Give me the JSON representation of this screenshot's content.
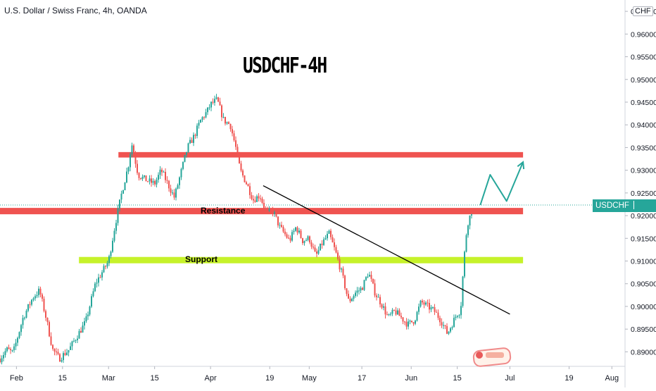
{
  "chart_header": {
    "symbol_line": "U.S. Dollar / Swiss Franc, 4h, OANDA",
    "currency": "CHF"
  },
  "chart_data": {
    "type": "candlestick",
    "title": "USDCHF-4H",
    "ylim": [
      0.8868,
      0.9675
    ],
    "x_range": [
      "2021-01-27",
      "2021-08-05"
    ],
    "x_ticks": [
      {
        "date": "2021-02-01",
        "label": "Feb"
      },
      {
        "date": "2021-02-15",
        "label": "15"
      },
      {
        "date": "2021-03-01",
        "label": "Mar"
      },
      {
        "date": "2021-03-15",
        "label": "15"
      },
      {
        "date": "2021-04-01",
        "label": "Apr"
      },
      {
        "date": "2021-04-19",
        "label": "19"
      },
      {
        "date": "2021-05-01",
        "label": "May"
      },
      {
        "date": "2021-05-17",
        "label": "17"
      },
      {
        "date": "2021-06-01",
        "label": "Jun"
      },
      {
        "date": "2021-06-15",
        "label": "15"
      },
      {
        "date": "2021-07-01",
        "label": "Jul"
      },
      {
        "date": "2021-07-19",
        "label": "19"
      },
      {
        "date": "2021-08-01",
        "label": "Aug"
      }
    ],
    "y_ticks": [
      0.965,
      0.96,
      0.955,
      0.95,
      0.945,
      0.94,
      0.935,
      0.93,
      0.925,
      0.92,
      0.915,
      0.91,
      0.905,
      0.9,
      0.895,
      0.89
    ],
    "last_price": {
      "label": "USDCHF",
      "value": "0.92233",
      "price": 0.92233
    },
    "price_path": [
      [
        "2021-01-27",
        0.8885
      ],
      [
        "2021-01-29",
        0.8905
      ],
      [
        "2021-01-31",
        0.8898
      ],
      [
        "2021-02-03",
        0.8975
      ],
      [
        "2021-02-06",
        0.902
      ],
      [
        "2021-02-08",
        0.9035
      ],
      [
        "2021-02-10",
        0.8975
      ],
      [
        "2021-02-12",
        0.8905
      ],
      [
        "2021-02-14",
        0.8885
      ],
      [
        "2021-02-17",
        0.8905
      ],
      [
        "2021-02-19",
        0.893
      ],
      [
        "2021-02-22",
        0.8965
      ],
      [
        "2021-02-25",
        0.905
      ],
      [
        "2021-02-27",
        0.9075
      ],
      [
        "2021-03-01",
        0.91
      ],
      [
        "2021-03-03",
        0.918
      ],
      [
        "2021-03-05",
        0.925
      ],
      [
        "2021-03-07",
        0.931
      ],
      [
        "2021-03-08",
        0.936
      ],
      [
        "2021-03-10",
        0.929
      ],
      [
        "2021-03-12",
        0.928
      ],
      [
        "2021-03-15",
        0.927
      ],
      [
        "2021-03-17",
        0.93
      ],
      [
        "2021-03-19",
        0.927
      ],
      [
        "2021-03-21",
        0.924
      ],
      [
        "2021-03-23",
        0.9295
      ],
      [
        "2021-03-25",
        0.935
      ],
      [
        "2021-03-27",
        0.9375
      ],
      [
        "2021-03-29",
        0.941
      ],
      [
        "2021-03-31",
        0.943
      ],
      [
        "2021-04-01",
        0.9445
      ],
      [
        "2021-04-03",
        0.9455
      ],
      [
        "2021-04-05",
        0.941
      ],
      [
        "2021-04-07",
        0.94
      ],
      [
        "2021-04-09",
        0.934
      ],
      [
        "2021-04-10",
        0.93
      ],
      [
        "2021-04-12",
        0.927
      ],
      [
        "2021-04-14",
        0.9235
      ],
      [
        "2021-04-16",
        0.9245
      ],
      [
        "2021-04-18",
        0.9205
      ],
      [
        "2021-04-20",
        0.921
      ],
      [
        "2021-04-22",
        0.9175
      ],
      [
        "2021-04-25",
        0.9145
      ],
      [
        "2021-04-27",
        0.9175
      ],
      [
        "2021-04-29",
        0.9145
      ],
      [
        "2021-05-01",
        0.915
      ],
      [
        "2021-05-03",
        0.911
      ],
      [
        "2021-05-05",
        0.914
      ],
      [
        "2021-05-07",
        0.916
      ],
      [
        "2021-05-09",
        0.912
      ],
      [
        "2021-05-11",
        0.907
      ],
      [
        "2021-05-13",
        0.901
      ],
      [
        "2021-05-15",
        0.903
      ],
      [
        "2021-05-17",
        0.904
      ],
      [
        "2021-05-19",
        0.9075
      ],
      [
        "2021-05-21",
        0.903
      ],
      [
        "2021-05-23",
        0.9005
      ],
      [
        "2021-05-25",
        0.8975
      ],
      [
        "2021-05-27",
        0.899
      ],
      [
        "2021-05-29",
        0.8975
      ],
      [
        "2021-05-31",
        0.896
      ],
      [
        "2021-06-02",
        0.897
      ],
      [
        "2021-06-04",
        0.901
      ],
      [
        "2021-06-06",
        0.9
      ],
      [
        "2021-06-08",
        0.899
      ],
      [
        "2021-06-10",
        0.897
      ],
      [
        "2021-06-12",
        0.894
      ],
      [
        "2021-06-13",
        0.8955
      ],
      [
        "2021-06-15",
        0.8985
      ],
      [
        "2021-06-16",
        0.899
      ],
      [
        "2021-06-17",
        0.91
      ],
      [
        "2021-06-18",
        0.918
      ],
      [
        "2021-06-20",
        0.92233
      ]
    ],
    "zones": [
      {
        "label": "Resistance",
        "color": "#ef5350",
        "from": "2021-03-04",
        "to": "2021-07-05",
        "price": 0.9334,
        "band": 0.0006
      },
      {
        "label": "Resistance",
        "color": "#ef5350",
        "from": "2021-01-27",
        "to": "2021-07-05",
        "price": 0.921,
        "band": 0.0007
      },
      {
        "label": "Support",
        "color": "#c6f22a",
        "from": "2021-02-20",
        "to": "2021-07-05",
        "price": 0.9102,
        "band": 0.0007
      }
    ],
    "trendline": {
      "color": "#000000",
      "from": [
        "2021-04-17",
        0.9266
      ],
      "to": [
        "2021-07-01",
        0.8983
      ]
    },
    "projection": {
      "color": "#26a69a",
      "points": [
        [
          "2021-06-22",
          0.92233
        ],
        [
          "2021-06-25",
          0.929
        ],
        [
          "2021-06-30",
          0.9232
        ],
        [
          "2021-07-05",
          0.9318
        ]
      ]
    },
    "colors": {
      "up": "#26a69a",
      "down": "#ef5350",
      "grid": "#f0f3fa",
      "axis_text": "#131722"
    }
  }
}
